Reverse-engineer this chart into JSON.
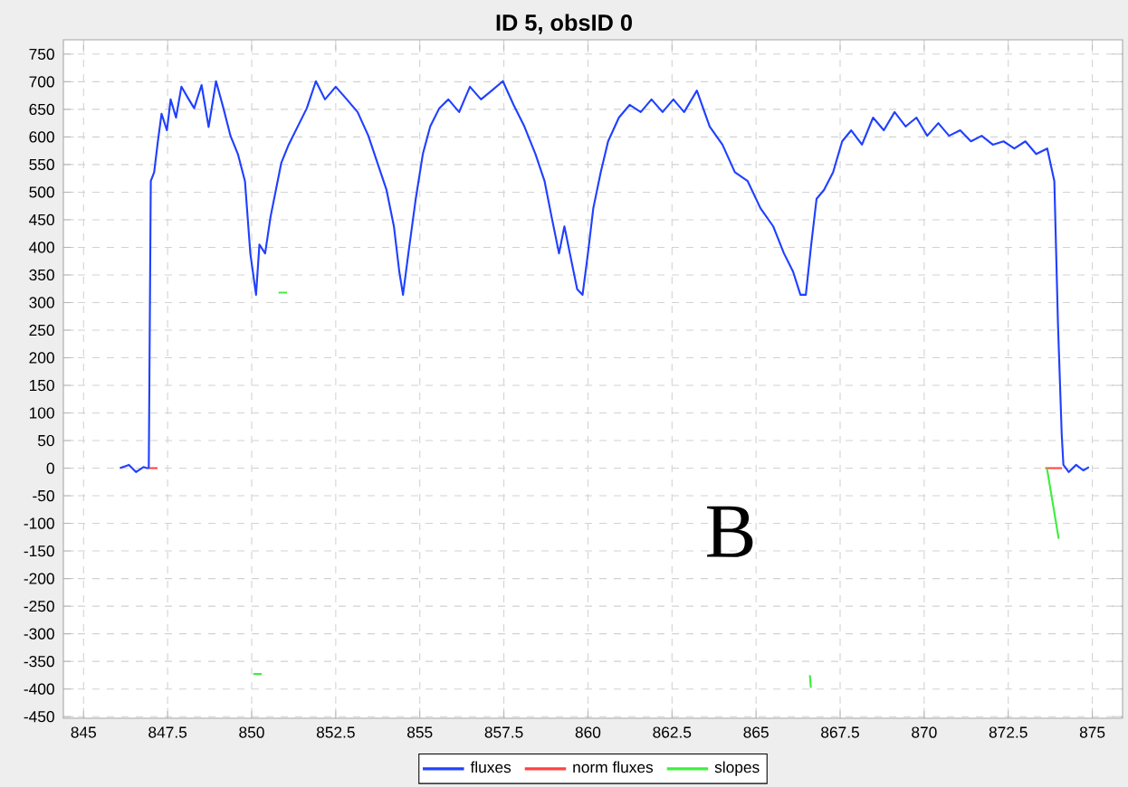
{
  "chart_data": {
    "type": "line",
    "title": "ID 5, obsID 0",
    "xlim": [
      844.4,
      875.9
    ],
    "ylim": [
      -453,
      776
    ],
    "xticks": [
      845,
      847.5,
      850,
      852.5,
      855,
      857.5,
      860,
      862.5,
      865,
      867.5,
      870,
      872.5,
      875
    ],
    "yticks": [
      -450,
      -400,
      -350,
      -300,
      -250,
      -200,
      -150,
      -100,
      -50,
      0,
      50,
      100,
      150,
      200,
      250,
      300,
      350,
      400,
      450,
      500,
      550,
      600,
      650,
      700,
      750
    ],
    "grid": true,
    "legend": "bottom",
    "annotations": [
      "B"
    ],
    "series": [
      {
        "name": "fluxes",
        "color": "#2040ff",
        "x": [
          846.08,
          846.35,
          846.56,
          846.78,
          846.89,
          846.94,
          847.0,
          847.1,
          847.21,
          847.32,
          847.48,
          847.59,
          847.75,
          847.91,
          848.13,
          848.29,
          848.51,
          848.72,
          848.94,
          849.16,
          849.37,
          849.59,
          849.8,
          849.96,
          850.13,
          850.23,
          850.4,
          850.56,
          850.72,
          850.88,
          851.1,
          851.37,
          851.64,
          851.91,
          852.18,
          852.5,
          852.83,
          853.15,
          853.47,
          853.74,
          854.01,
          854.23,
          854.39,
          854.5,
          854.66,
          854.88,
          855.09,
          855.31,
          855.58,
          855.85,
          856.17,
          856.49,
          856.82,
          857.14,
          857.47,
          857.79,
          858.11,
          858.44,
          858.71,
          858.92,
          859.14,
          859.3,
          859.52,
          859.68,
          859.84,
          860.0,
          860.16,
          860.38,
          860.6,
          860.92,
          861.24,
          861.57,
          861.89,
          862.22,
          862.54,
          862.86,
          863.24,
          863.62,
          864.0,
          864.37,
          864.75,
          865.13,
          865.51,
          865.83,
          866.1,
          866.32,
          866.48,
          866.64,
          866.8,
          867.02,
          867.29,
          867.56,
          867.83,
          868.15,
          868.48,
          868.8,
          869.12,
          869.45,
          869.77,
          870.09,
          870.42,
          870.74,
          871.07,
          871.39,
          871.71,
          872.04,
          872.36,
          872.68,
          873.01,
          873.33,
          873.66,
          873.87,
          873.98,
          874.09,
          874.14,
          874.3,
          874.52,
          874.73,
          874.9
        ],
        "values": [
          0,
          6,
          -7,
          2,
          0,
          0,
          520,
          536,
          592,
          642,
          612,
          668,
          635,
          691,
          668,
          652,
          694,
          618,
          701,
          652,
          602,
          569,
          520,
          389,
          314,
          405,
          389,
          455,
          504,
          553,
          586,
          619,
          652,
          701,
          668,
          691,
          668,
          645,
          602,
          553,
          504,
          438,
          356,
          314,
          389,
          488,
          569,
          619,
          652,
          668,
          645,
          691,
          668,
          684,
          701,
          658,
          619,
          569,
          520,
          455,
          389,
          438,
          372,
          324,
          314,
          389,
          471,
          536,
          592,
          635,
          658,
          645,
          668,
          645,
          668,
          645,
          684,
          619,
          586,
          536,
          520,
          471,
          438,
          389,
          356,
          314,
          314,
          405,
          488,
          504,
          536,
          592,
          612,
          586,
          635,
          612,
          645,
          619,
          635,
          602,
          625,
          602,
          612,
          592,
          602,
          586,
          592,
          579,
          592,
          569,
          579,
          520,
          258,
          61,
          6,
          -7,
          6,
          -4,
          2
        ]
      },
      {
        "name": "norm fluxes",
        "color": "#ff4040",
        "x": [
          846.95,
          847.2,
          847.25,
          873.6,
          874.1
        ],
        "values": [
          0,
          0,
          null,
          0,
          0
        ]
      },
      {
        "name": "slopes",
        "color": "#40ee40",
        "x": [
          850.05,
          850.3,
          850.5,
          850.8,
          851.05,
          851.1,
          866.6,
          866.63,
          866.7,
          873.65,
          874.0
        ],
        "values": [
          -373,
          -373,
          null,
          318,
          318,
          null,
          -375,
          -398,
          null,
          0,
          -128
        ]
      }
    ]
  }
}
